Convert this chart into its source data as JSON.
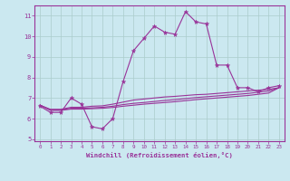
{
  "xlabel": "Windchill (Refroidissement éolien,°C)",
  "background_color": "#cbe8f0",
  "line_color": "#993399",
  "grid_color": "#aacccc",
  "xlim": [
    -0.5,
    23.5
  ],
  "ylim": [
    4.9,
    11.5
  ],
  "yticks": [
    5,
    6,
    7,
    8,
    9,
    10,
    11
  ],
  "xticks": [
    0,
    1,
    2,
    3,
    4,
    5,
    6,
    7,
    8,
    9,
    10,
    11,
    12,
    13,
    14,
    15,
    16,
    17,
    18,
    19,
    20,
    21,
    22,
    23
  ],
  "series": [
    {
      "x": [
        0,
        1,
        2,
        3,
        4,
        5,
        6,
        7,
        8,
        9,
        10,
        11,
        12,
        13,
        14,
        15,
        16,
        17,
        18,
        19,
        20,
        21,
        22,
        23
      ],
      "y": [
        6.6,
        6.3,
        6.3,
        7.0,
        6.7,
        5.6,
        5.5,
        6.0,
        7.8,
        9.3,
        9.9,
        10.5,
        10.2,
        10.1,
        11.2,
        10.7,
        10.6,
        8.6,
        8.6,
        7.5,
        7.5,
        7.3,
        7.5,
        7.6
      ],
      "marker": true
    },
    {
      "x": [
        0,
        1,
        2,
        3,
        4,
        5,
        6,
        7,
        8,
        9,
        10,
        11,
        12,
        13,
        14,
        15,
        16,
        17,
        18,
        19,
        20,
        21,
        22,
        23
      ],
      "y": [
        6.65,
        6.45,
        6.45,
        6.55,
        6.55,
        6.6,
        6.62,
        6.7,
        6.8,
        6.9,
        6.95,
        7.0,
        7.05,
        7.08,
        7.12,
        7.16,
        7.18,
        7.22,
        7.26,
        7.3,
        7.34,
        7.38,
        7.42,
        7.5
      ],
      "marker": false
    },
    {
      "x": [
        0,
        1,
        2,
        3,
        4,
        5,
        6,
        7,
        8,
        9,
        10,
        11,
        12,
        13,
        14,
        15,
        16,
        17,
        18,
        19,
        20,
        21,
        22,
        23
      ],
      "y": [
        6.65,
        6.42,
        6.42,
        6.5,
        6.5,
        6.52,
        6.55,
        6.6,
        6.68,
        6.74,
        6.78,
        6.83,
        6.88,
        6.92,
        6.97,
        7.02,
        7.06,
        7.1,
        7.14,
        7.18,
        7.22,
        7.28,
        7.34,
        7.5
      ],
      "marker": false
    },
    {
      "x": [
        0,
        1,
        2,
        3,
        4,
        5,
        6,
        7,
        8,
        9,
        10,
        11,
        12,
        13,
        14,
        15,
        16,
        17,
        18,
        19,
        20,
        21,
        22,
        23
      ],
      "y": [
        6.65,
        6.4,
        6.4,
        6.46,
        6.46,
        6.48,
        6.5,
        6.54,
        6.6,
        6.65,
        6.7,
        6.74,
        6.78,
        6.82,
        6.87,
        6.92,
        6.96,
        7.0,
        7.04,
        7.08,
        7.12,
        7.18,
        7.24,
        7.5
      ],
      "marker": false
    }
  ]
}
